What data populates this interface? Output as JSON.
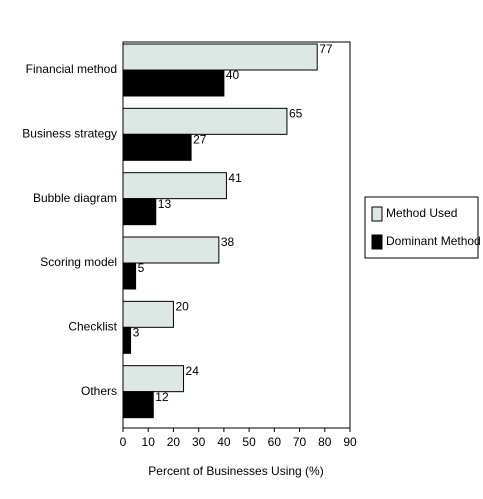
{
  "chart_data": {
    "type": "bar",
    "orientation": "horizontal",
    "x_label": "Percent of Businesses Using (%)",
    "categories": [
      "Financial method",
      "Business strategy",
      "Bubble diagram",
      "Scoring model",
      "Checklist",
      "Others"
    ],
    "series": [
      {
        "name": "Method Used",
        "color": "#dde8e4",
        "values": [
          77,
          65,
          41,
          38,
          20,
          24
        ]
      },
      {
        "name": "Dominant Method",
        "color": "#000000",
        "values": [
          40,
          27,
          13,
          5,
          3,
          12
        ]
      }
    ],
    "xlim": [
      0,
      90
    ],
    "xticks": [
      0,
      10,
      20,
      30,
      40,
      50,
      60,
      70,
      80,
      90
    ],
    "legend": "right"
  }
}
